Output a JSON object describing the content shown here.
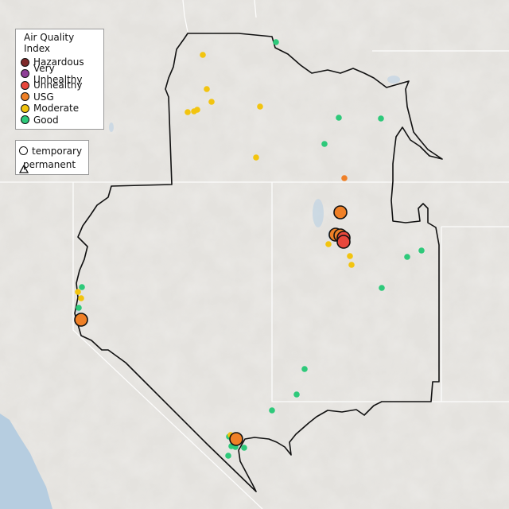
{
  "legend": {
    "title": "Air Quality Index",
    "categories": [
      {
        "label": "Hazardous",
        "color": "#7e2a2a"
      },
      {
        "label": "Very Unhealthy",
        "color": "#8f3f97"
      },
      {
        "label": "Unhealthy",
        "color": "#e8473c"
      },
      {
        "label": "USG",
        "color": "#ef8027"
      },
      {
        "label": "Moderate",
        "color": "#f2c40f"
      },
      {
        "label": "Good",
        "color": "#2ec97a"
      }
    ],
    "types": [
      {
        "label": "temporary",
        "shape": "circle"
      },
      {
        "label": "permanent",
        "shape": "triangle"
      }
    ]
  },
  "colors": {
    "land": "#e4e2de",
    "ocean": "#b6cde0",
    "border": "#111111"
  }
}
